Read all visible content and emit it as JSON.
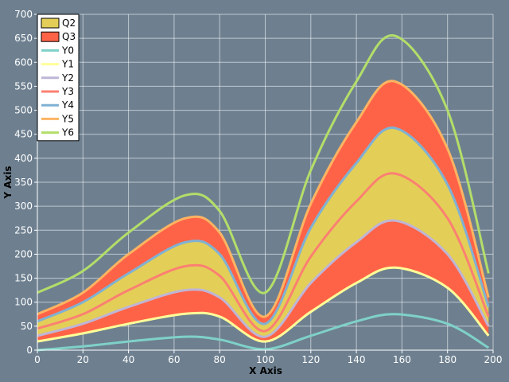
{
  "chart_data": {
    "type": "area",
    "xlabel": "X Axis",
    "ylabel": "Y Axis",
    "xlim": [
      0,
      200
    ],
    "ylim": [
      0,
      700
    ],
    "x_ticks": [
      "0",
      "20",
      "40",
      "60",
      "80",
      "100",
      "120",
      "140",
      "160",
      "180",
      "200"
    ],
    "y_ticks": [
      "0",
      "50",
      "100",
      "150",
      "200",
      "250",
      "300",
      "350",
      "400",
      "450",
      "500",
      "550",
      "600",
      "650",
      "700"
    ],
    "grid": true,
    "legend_position": "top-left",
    "x": [
      0,
      20,
      40,
      65,
      80,
      100,
      120,
      140,
      157,
      180,
      198
    ],
    "lines": [
      {
        "name": "Y0",
        "color": "#7fd1c8",
        "values": [
          0,
          8,
          18,
          28,
          22,
          2,
          30,
          60,
          75,
          55,
          5
        ]
      },
      {
        "name": "Y1",
        "color": "#ffff99",
        "values": [
          18,
          35,
          55,
          76,
          70,
          18,
          80,
          140,
          172,
          130,
          30
        ]
      },
      {
        "name": "Y2",
        "color": "#bfb5d6",
        "values": [
          30,
          55,
          90,
          125,
          110,
          28,
          140,
          225,
          270,
          200,
          50
        ]
      },
      {
        "name": "Y3",
        "color": "#fb8072",
        "values": [
          45,
          75,
          125,
          175,
          155,
          40,
          195,
          310,
          368,
          275,
          70
        ]
      },
      {
        "name": "Y4",
        "color": "#80b1d3",
        "values": [
          60,
          100,
          160,
          225,
          200,
          55,
          255,
          390,
          463,
          345,
          90
        ]
      },
      {
        "name": "Y5",
        "color": "#fdb462",
        "values": [
          75,
          120,
          200,
          275,
          245,
          70,
          305,
          475,
          560,
          420,
          110
        ]
      },
      {
        "name": "Y6",
        "color": "#b3de69",
        "values": [
          120,
          165,
          245,
          323,
          290,
          120,
          375,
          560,
          655,
          500,
          160
        ]
      }
    ],
    "bands": [
      {
        "name": "Q3",
        "color": "#ff6347",
        "lower": "Y1",
        "upper": "Y5"
      },
      {
        "name": "Q2",
        "color": "#e3cf57",
        "lower": "Y2",
        "upper": "Y4"
      }
    ]
  }
}
